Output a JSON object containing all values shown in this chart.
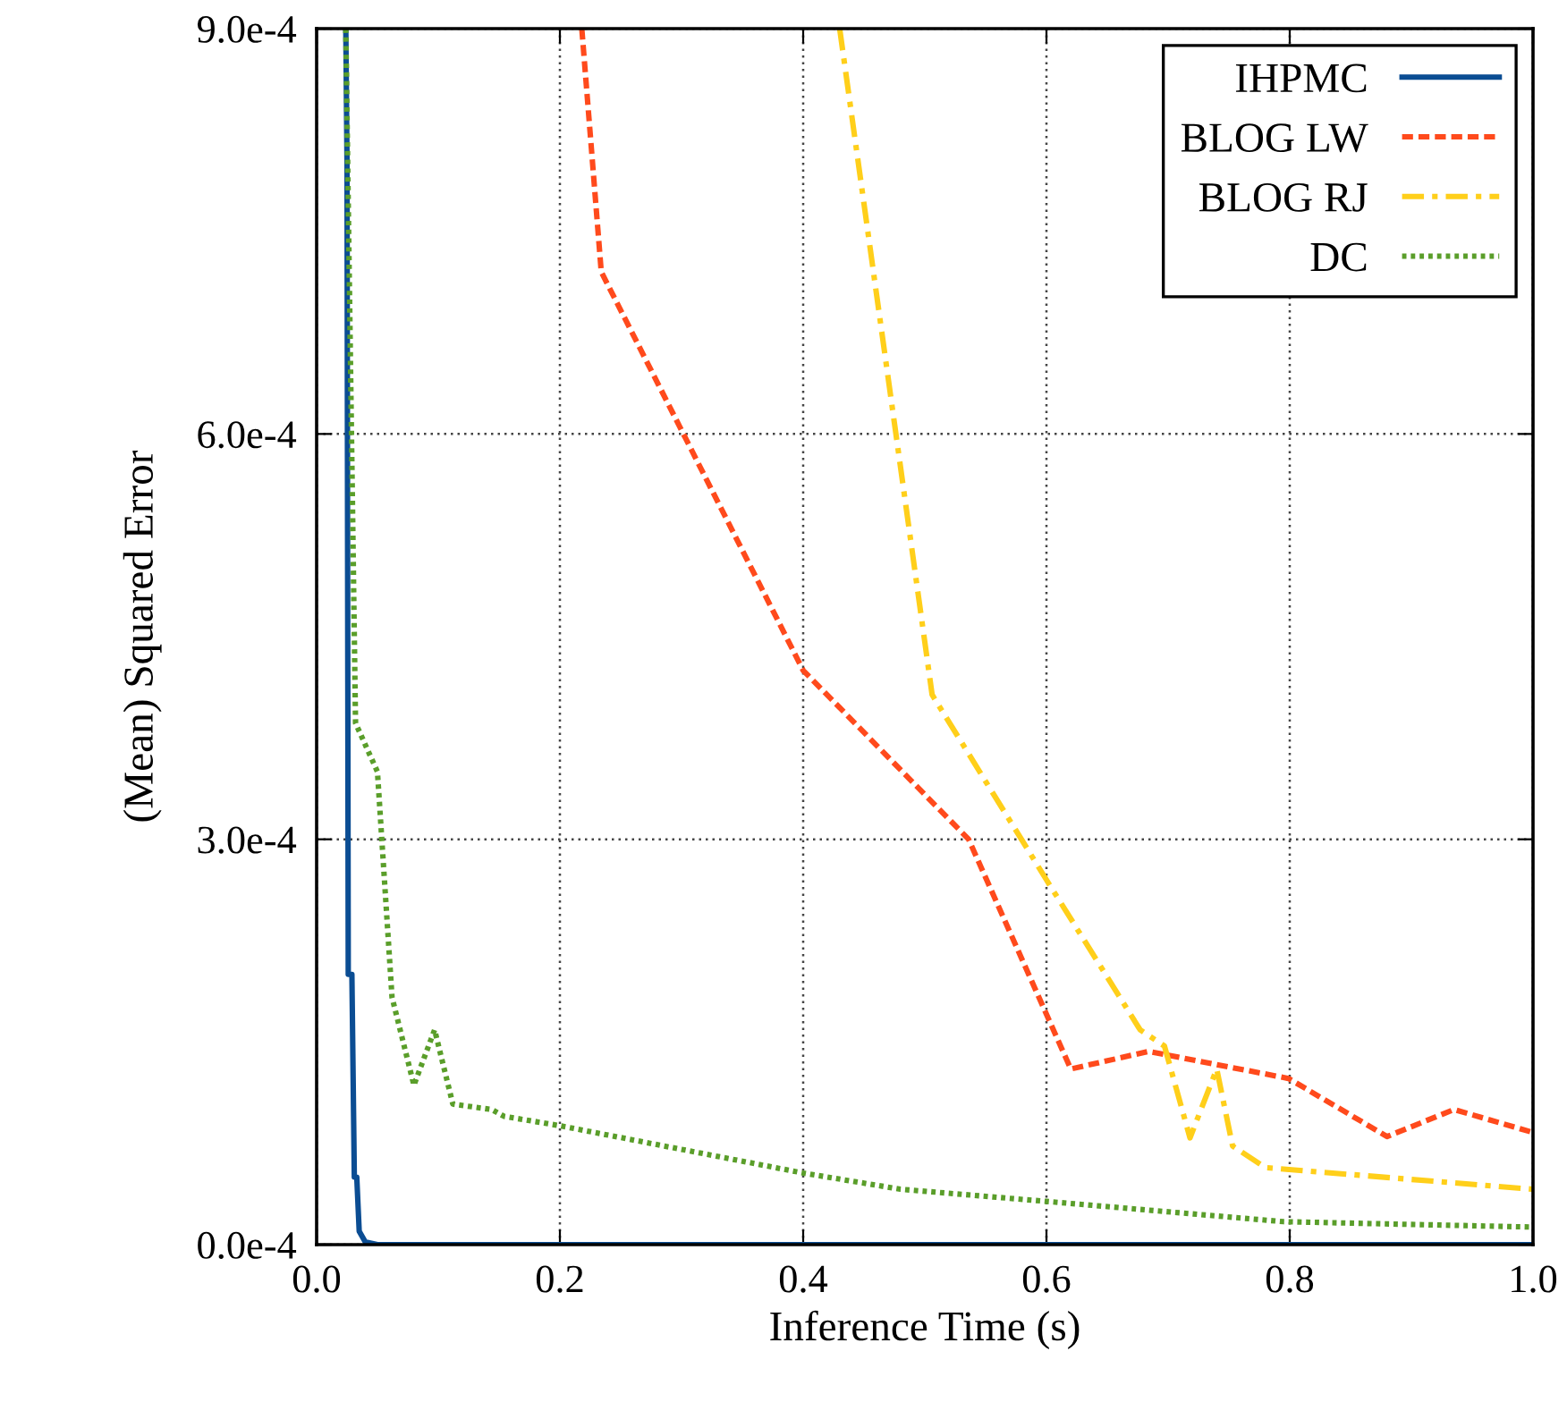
{
  "chart_data": {
    "type": "line",
    "xlabel": "Inference Time (s)",
    "ylabel": "(Mean) Squared Error",
    "xlim": [
      0,
      1.0
    ],
    "ylim": [
      0,
      0.0009
    ],
    "xticks": [
      {
        "value": 0,
        "label": "0.0"
      },
      0.2,
      0.4,
      0.6,
      0.8,
      {
        "value": 1.0,
        "label": "1.0"
      }
    ],
    "yticks": [
      {
        "value": 0,
        "label": "0.0e-4"
      },
      {
        "value": 0.0003,
        "label": "3.0e-4"
      },
      {
        "value": 0.0006,
        "label": "6.0e-4"
      },
      {
        "value": 0.0009,
        "label": "9.0e-4"
      }
    ],
    "grid": true,
    "legend": "top right",
    "marker": "none",
    "series": [
      {
        "name": "IHPMC",
        "color": "#0b4d93",
        "line_style": "solid",
        "x": [
          0.024,
          0.025,
          0.026,
          0.029,
          0.031,
          0.033,
          0.035,
          0.04,
          0.05,
          1.0
        ],
        "values": [
          0.0009,
          0.0008,
          0.0002,
          0.0002,
          5e-05,
          5e-05,
          1e-05,
          2e-06,
          0,
          0
        ]
      },
      {
        "name": "BLOG LW",
        "color": "#ff4a1c",
        "line_style": "dashed",
        "x": [
          0.218,
          0.234,
          0.4,
          0.536,
          0.62,
          0.684,
          0.799,
          0.88,
          0.935,
          1.0
        ],
        "values": [
          0.0009,
          0.00072,
          0.000425,
          0.0003,
          0.00013,
          0.000143,
          0.000123,
          8e-05,
          0.0001,
          8.3e-05
        ]
      },
      {
        "name": "BLOG RJ",
        "color": "#ffcf1a",
        "line_style": "dashdot",
        "x": [
          0.43,
          0.506,
          0.6,
          0.677,
          0.697,
          0.718,
          0.74,
          0.753,
          0.78,
          1.0
        ],
        "values": [
          0.0009,
          0.000407,
          0.00027,
          0.000159,
          0.000147,
          7.9e-05,
          0.00013,
          7.3e-05,
          5.7e-05,
          4.1e-05
        ]
      },
      {
        "name": "DC",
        "color": "#5a9e2a",
        "line_style": "dotted",
        "x": [
          0.024,
          0.032,
          0.05,
          0.062,
          0.08,
          0.097,
          0.112,
          0.144,
          0.154,
          0.2,
          0.4,
          0.48,
          0.6,
          0.795,
          1.0
        ],
        "values": [
          0.0009,
          0.000386,
          0.00035,
          0.000183,
          0.000118,
          0.000159,
          0.000104,
          0.0001,
          9.5e-05,
          8.8e-05,
          5.3e-05,
          4.1e-05,
          3.2e-05,
          1.7e-05,
          1.3e-05
        ]
      }
    ]
  }
}
